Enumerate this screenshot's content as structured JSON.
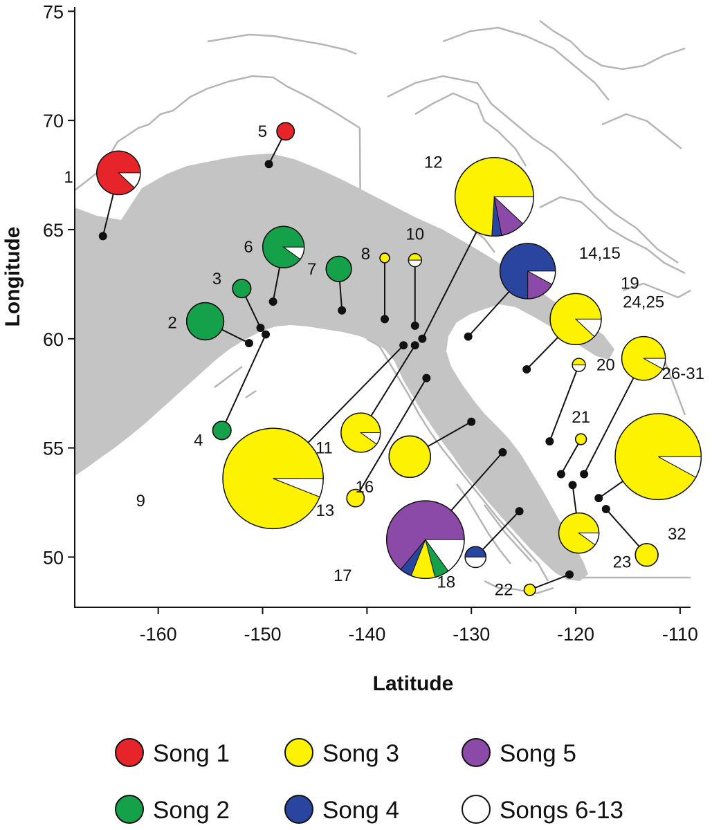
{
  "chart_data": {
    "type": "map",
    "x_axis": {
      "label": "Latitude",
      "range": [
        -168,
        -109
      ],
      "ticks": [
        -160,
        -150,
        -140,
        -130,
        -120,
        -110
      ]
    },
    "y_axis": {
      "label": "Longitude",
      "range": [
        47.7,
        75.2
      ],
      "ticks": [
        50,
        55,
        60,
        65,
        70,
        75
      ]
    },
    "song_colors": {
      "Song 1": "#e8242b",
      "Song 2": "#15a14a",
      "Song 3": "#fdf200",
      "Song 4": "#2a45a0",
      "Song 5": "#8b4aa8",
      "Songs 6-13": "#ffffff"
    },
    "legend": [
      {
        "label": "Song 1",
        "color": "#e8242b"
      },
      {
        "label": "Song 3",
        "color": "#fdf200"
      },
      {
        "label": "Song 5",
        "color": "#8b4aa8"
      },
      {
        "label": "Song 2",
        "color": "#15a14a"
      },
      {
        "label": "Song 4",
        "color": "#2a45a0"
      },
      {
        "label": "Songs 6-13",
        "color": "#ffffff"
      }
    ],
    "sites": [
      {
        "label": "1",
        "point": [
          -165.3,
          64.7
        ],
        "pie": [
          -163.8,
          67.6
        ],
        "r": 1.0,
        "composition": {
          "Song 1": 0.88,
          "Songs 6-13": 0.12
        }
      },
      {
        "label": "2",
        "point": [
          -151.3,
          59.8
        ],
        "pie": [
          -155.5,
          60.8
        ],
        "r": 0.85,
        "composition": {
          "Song 2": 1.0
        }
      },
      {
        "label": "3",
        "point": [
          -150.2,
          60.5
        ],
        "pie": [
          -152.0,
          62.3
        ],
        "r": 0.42,
        "composition": {
          "Song 2": 1.0
        }
      },
      {
        "label": "4",
        "point": [
          -149.7,
          60.2
        ],
        "pie": [
          -153.9,
          55.8
        ],
        "r": 0.42,
        "composition": {
          "Song 2": 1.0
        }
      },
      {
        "label": "5",
        "point": [
          -149.4,
          68.0
        ],
        "pie": [
          -147.8,
          69.5
        ],
        "r": 0.4,
        "composition": {
          "Song 1": 1.0
        }
      },
      {
        "label": "6",
        "point": [
          -149.0,
          61.7
        ],
        "pie": [
          -148.0,
          64.2
        ],
        "r": 0.95,
        "composition": {
          "Song 2": 0.9,
          "Songs 6-13": 0.1
        }
      },
      {
        "label": "7",
        "point": [
          -142.4,
          61.3
        ],
        "pie": [
          -142.7,
          63.2
        ],
        "r": 0.58,
        "composition": {
          "Song 2": 1.0
        }
      },
      {
        "label": "8",
        "point": [
          -138.3,
          60.9
        ],
        "pie": [
          -138.3,
          63.7
        ],
        "r": 0.22,
        "composition": {
          "Song 3": 1.0
        }
      },
      {
        "label": "9",
        "point": [
          -136.5,
          59.7
        ],
        "pie": [
          -149.0,
          53.6
        ],
        "r": 2.3,
        "composition": {
          "Song 3": 0.94,
          "Songs 6-13": 0.06
        }
      },
      {
        "label": "10",
        "point": [
          -135.4,
          60.6
        ],
        "pie": [
          -135.4,
          63.6
        ],
        "r": 0.3,
        "composition": {
          "Song 3": 0.5,
          "Songs 6-13": 0.5
        }
      },
      {
        "label": "11",
        "point": [
          -135.4,
          59.7
        ],
        "pie": [
          -140.6,
          55.7
        ],
        "r": 0.9,
        "composition": {
          "Song 3": 0.9,
          "Songs 6-13": 0.1
        }
      },
      {
        "label": "12",
        "point": [
          -134.7,
          60.0
        ],
        "pie": [
          -127.8,
          66.5
        ],
        "r": 1.8,
        "composition": {
          "Song 3": 0.74,
          "Song 4": 0.04,
          "Song 5": 0.1,
          "Songs 6-13": 0.12
        }
      },
      {
        "label": "13",
        "point": [
          -134.3,
          58.2
        ],
        "pie": [
          -141.1,
          52.7
        ],
        "r": 0.4,
        "composition": {
          "Song 3": 1.0
        }
      },
      {
        "label": "14,15",
        "point": [
          -130.3,
          60.1
        ],
        "pie": [
          -124.6,
          63.1
        ],
        "r": 1.27,
        "composition": {
          "Song 4": 0.75,
          "Song 5": 0.17,
          "Songs 6-13": 0.08
        }
      },
      {
        "label": "16",
        "point": [
          -130.0,
          56.2
        ],
        "pie": [
          -135.9,
          54.6
        ],
        "r": 0.95,
        "composition": {
          "Song 3": 1.0
        }
      },
      {
        "label": "17",
        "point": [
          -127.0,
          54.8
        ],
        "pie": [
          -134.4,
          50.8
        ],
        "r": 1.78,
        "composition": {
          "Song 5": 0.64,
          "Song 4": 0.05,
          "Song 3": 0.1,
          "Song 2": 0.06,
          "Songs 6-13": 0.15
        }
      },
      {
        "label": "18",
        "point": [
          -125.4,
          52.1
        ],
        "pie": [
          -129.6,
          50.0
        ],
        "r": 0.48,
        "composition": {
          "Song 4": 0.5,
          "Songs 6-13": 0.5
        }
      },
      {
        "label": "19",
        "point": [
          -124.7,
          58.6
        ],
        "pie": [
          -120.0,
          60.9
        ],
        "r": 1.17,
        "composition": {
          "Song 3": 0.88,
          "Songs 6-13": 0.12
        }
      },
      {
        "label": "20",
        "point": [
          -122.5,
          55.3
        ],
        "pie": [
          -119.7,
          58.8
        ],
        "r": 0.3,
        "composition": {
          "Song 3": 0.5,
          "Songs 6-13": 0.5
        }
      },
      {
        "label": "21",
        "point": [
          -121.4,
          53.8
        ],
        "pie": [
          -119.5,
          55.4
        ],
        "r": 0.25,
        "composition": {
          "Song 3": 1.0
        }
      },
      {
        "label": "22",
        "point": [
          -120.6,
          49.2
        ],
        "pie": [
          -124.4,
          48.5
        ],
        "r": 0.26,
        "composition": {
          "Song 3": 1.0
        }
      },
      {
        "label": "23",
        "point": [
          -120.3,
          53.3
        ],
        "pie": [
          -119.7,
          51.1
        ],
        "r": 0.92,
        "composition": {
          "Song 3": 0.9,
          "Songs 6-13": 0.1
        }
      },
      {
        "label": "24,25",
        "point": [
          -119.2,
          53.8
        ],
        "pie": [
          -113.5,
          59.1
        ],
        "r": 1.0,
        "composition": {
          "Song 3": 0.92,
          "Songs 6-13": 0.08
        }
      },
      {
        "label": "26-31",
        "point": [
          -117.8,
          52.7
        ],
        "pie": [
          -112.1,
          54.6
        ],
        "r": 1.97,
        "composition": {
          "Song 3": 0.92,
          "Songs 6-13": 0.08
        }
      },
      {
        "label": "32",
        "point": [
          -117.1,
          52.2
        ],
        "pie": [
          -113.2,
          50.1
        ],
        "r": 0.52,
        "composition": {
          "Song 3": 1.0
        }
      }
    ]
  }
}
